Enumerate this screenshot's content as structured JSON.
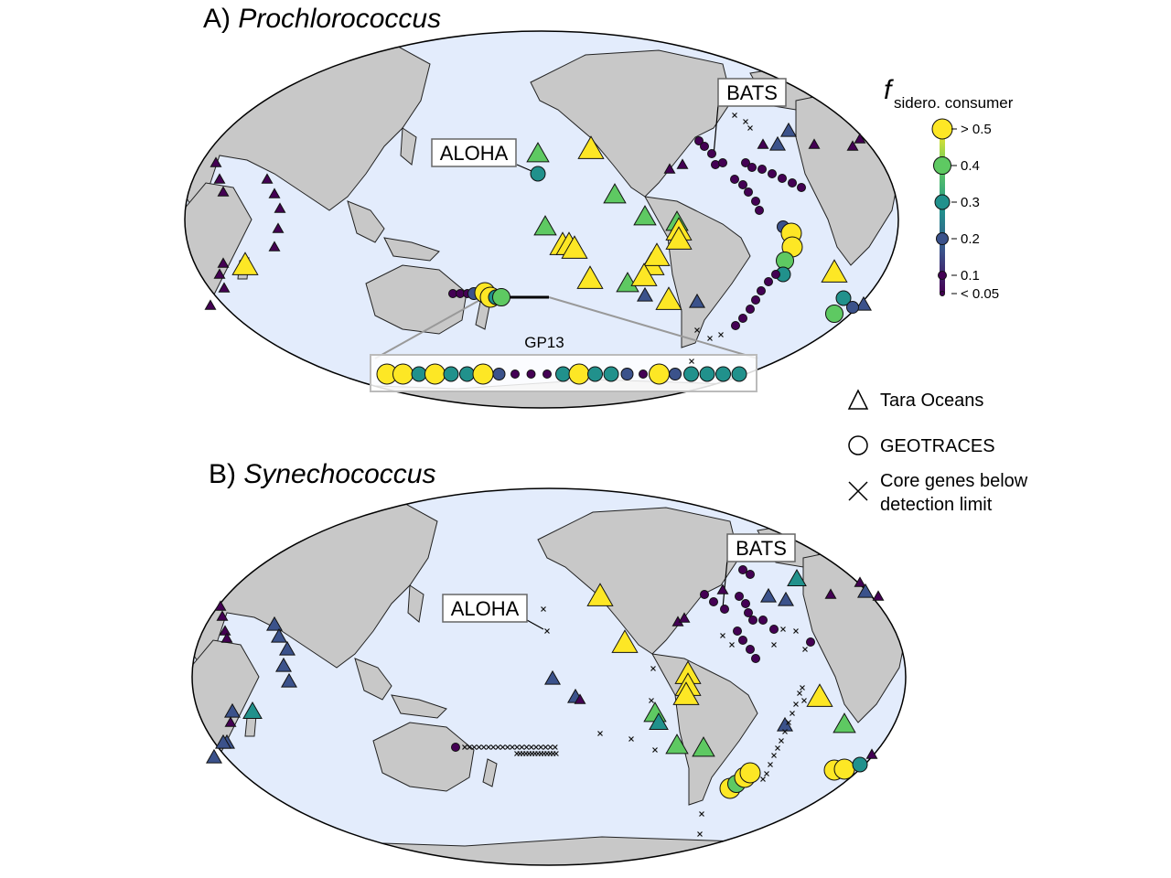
{
  "panels": [
    {
      "prefix": "A) ",
      "organism": "Prochlorococcus"
    },
    {
      "prefix": "B) ",
      "organism": "Synechococcus"
    }
  ],
  "station_labels": {
    "aloha": "ALOHA",
    "bats": "BATS"
  },
  "inset": {
    "label": "GP13"
  },
  "colorbar": {
    "title_f": "f",
    "title_sub": "sidero. consumer",
    "ticks": [
      "> 0.5",
      "0.4",
      "0.3",
      "0.2",
      "0.1",
      "< 0.05"
    ],
    "colors": [
      "#fde725",
      "#5ec962",
      "#21918c",
      "#3b528b",
      "#440154"
    ]
  },
  "legend": {
    "tara": "Tara Oceans",
    "geotraces": "GEOTRACES",
    "below": "Core genes below",
    "below2": "detection limit"
  },
  "colors": {
    "ocean": "#e3ecfc",
    "land": "#c8c8c8"
  }
}
